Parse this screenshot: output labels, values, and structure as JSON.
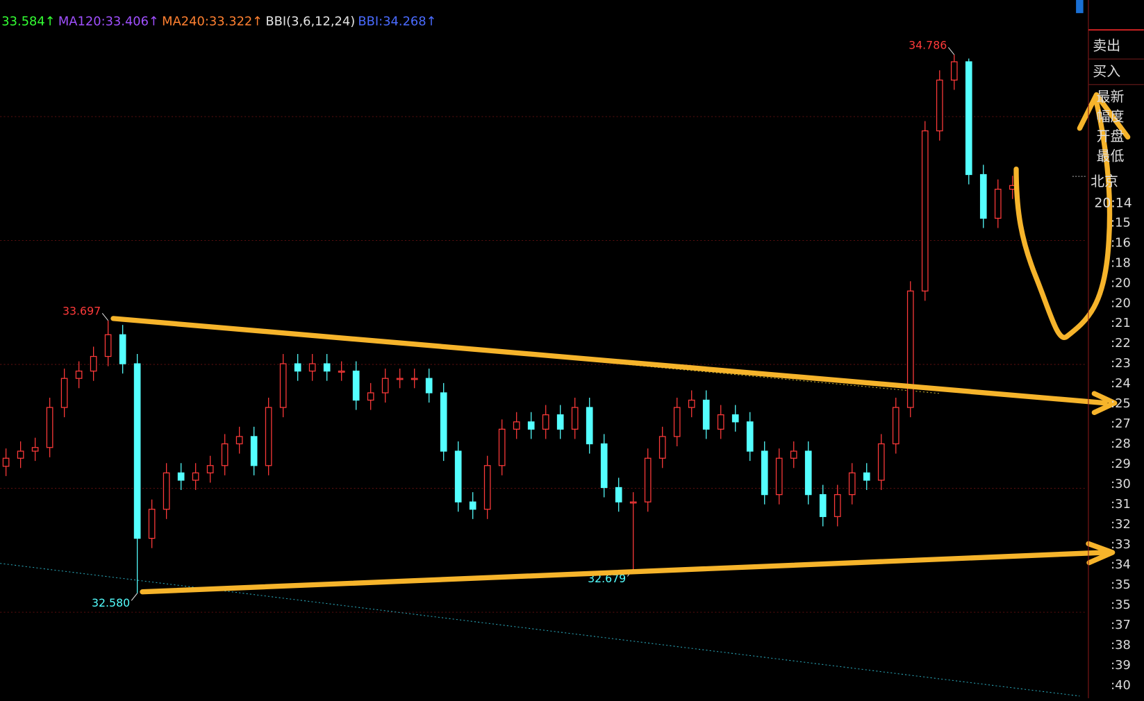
{
  "chart_data": {
    "type": "candlestick",
    "header": [
      {
        "text": "33.584↑",
        "color": "#33ff33"
      },
      {
        "text": "MA120:33.406↑",
        "color": "#a050ff"
      },
      {
        "text": "MA240:33.322↑",
        "color": "#ff8030"
      },
      {
        "text": "BBI(3,6,12,24)",
        "color": "#e6e6e6"
      },
      {
        "text": "BBI:34.268↑",
        "color": "#4a6bff"
      }
    ],
    "ylim": [
      32.15,
      35.01
    ],
    "up_color": "#ff3a3a",
    "down_color": "#54ffff",
    "open": [
      33.1,
      33.133,
      33.162,
      33.177,
      33.341,
      33.46,
      33.49,
      33.55,
      33.639,
      33.52,
      32.805,
      32.924,
      33.073,
      33.043,
      33.073,
      33.103,
      33.192,
      33.222,
      33.103,
      33.341,
      33.52,
      33.49,
      33.52,
      33.49,
      33.49,
      33.371,
      33.401,
      33.46,
      33.46,
      33.46,
      33.401,
      33.162,
      32.954,
      32.924,
      33.103,
      33.252,
      33.282,
      33.252,
      33.311,
      33.252,
      33.341,
      33.192,
      33.013,
      32.954,
      32.954,
      33.133,
      33.222,
      33.341,
      33.371,
      33.252,
      33.311,
      33.282,
      33.162,
      32.984,
      33.133,
      33.162,
      32.984,
      32.894,
      32.984,
      33.073,
      33.043,
      33.192,
      33.341,
      33.818,
      34.474,
      34.682,
      34.757,
      34.295,
      34.116,
      34.235
    ],
    "high": [
      33.173,
      33.202,
      33.217,
      33.381,
      33.5,
      33.53,
      33.59,
      33.697,
      33.679,
      33.56,
      32.964,
      33.113,
      33.113,
      33.113,
      33.143,
      33.232,
      33.262,
      33.262,
      33.381,
      33.56,
      33.56,
      33.56,
      33.56,
      33.53,
      33.53,
      33.441,
      33.5,
      33.5,
      33.5,
      33.5,
      33.441,
      33.202,
      32.994,
      33.143,
      33.292,
      33.322,
      33.322,
      33.351,
      33.351,
      33.381,
      33.381,
      33.232,
      33.053,
      32.994,
      33.173,
      33.262,
      33.381,
      33.411,
      33.411,
      33.351,
      33.351,
      33.322,
      33.202,
      33.173,
      33.202,
      33.202,
      33.024,
      33.024,
      33.113,
      33.113,
      33.232,
      33.381,
      33.858,
      34.514,
      34.722,
      34.786,
      34.77,
      34.335,
      34.275,
      34.29
    ],
    "low": [
      33.06,
      33.093,
      33.122,
      33.137,
      33.301,
      33.42,
      33.45,
      33.51,
      33.48,
      32.58,
      32.765,
      32.884,
      33.003,
      33.003,
      33.033,
      33.063,
      33.152,
      33.063,
      33.063,
      33.301,
      33.45,
      33.45,
      33.45,
      33.45,
      33.331,
      33.331,
      33.361,
      33.42,
      33.42,
      33.361,
      33.122,
      32.914,
      32.884,
      32.884,
      33.063,
      33.212,
      33.212,
      33.212,
      33.212,
      33.212,
      33.152,
      32.973,
      32.914,
      32.679,
      32.914,
      33.093,
      33.182,
      33.301,
      33.212,
      33.212,
      33.242,
      33.122,
      32.944,
      32.944,
      33.093,
      32.944,
      32.854,
      32.854,
      32.944,
      33.003,
      33.003,
      33.152,
      33.301,
      33.778,
      34.434,
      34.642,
      34.255,
      34.076,
      34.076,
      34.195
    ],
    "close": [
      33.133,
      33.162,
      33.177,
      33.341,
      33.46,
      33.49,
      33.55,
      33.639,
      33.52,
      32.805,
      32.924,
      33.073,
      33.043,
      33.073,
      33.103,
      33.192,
      33.222,
      33.103,
      33.341,
      33.52,
      33.49,
      33.52,
      33.49,
      33.49,
      33.371,
      33.401,
      33.46,
      33.46,
      33.46,
      33.401,
      33.162,
      32.954,
      32.924,
      33.103,
      33.252,
      33.282,
      33.252,
      33.311,
      33.252,
      33.341,
      33.192,
      33.013,
      32.954,
      32.954,
      33.133,
      33.222,
      33.341,
      33.371,
      33.252,
      33.311,
      33.282,
      33.162,
      32.984,
      33.133,
      33.162,
      32.984,
      32.894,
      32.984,
      33.073,
      33.043,
      33.192,
      33.341,
      33.818,
      34.474,
      34.682,
      34.757,
      34.295,
      34.116,
      34.235,
      34.25
    ],
    "extremes": [
      {
        "value": 34.786,
        "label": "34.786",
        "index": 65,
        "kind": "high"
      },
      {
        "value": 33.697,
        "label": "33.697",
        "index": 7,
        "kind": "high"
      },
      {
        "value": 32.58,
        "label": "32.580",
        "index": 9,
        "kind": "low"
      },
      {
        "value": 32.679,
        "label": "32.679",
        "index": 43,
        "kind": "low"
      }
    ]
  },
  "panel": {
    "buttons": [
      "卖出",
      "买入"
    ],
    "fields": [
      "最新",
      "幅度",
      "开盘",
      "最低"
    ],
    "city": "北京",
    "time": "20:14",
    "minutes": [
      ":15",
      ":16",
      ":18",
      ":20",
      ":20",
      ":21",
      ":22",
      ":23",
      ":24",
      ":25",
      ":27",
      ":28",
      ":29",
      ":30",
      ":31",
      ":32",
      ":33",
      ":34",
      ":35",
      ":35",
      ":37",
      ":38",
      ":39",
      ":40"
    ]
  }
}
